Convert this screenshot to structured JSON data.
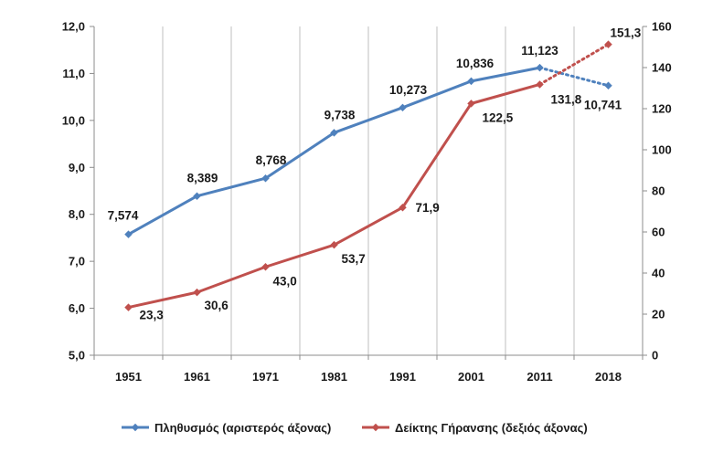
{
  "chart_data": {
    "type": "line",
    "title": "",
    "x": [
      "1951",
      "1961",
      "1971",
      "1981",
      "1991",
      "2001",
      "2011",
      "2018"
    ],
    "y_left": {
      "range": [
        5.0,
        12.0
      ],
      "step": 1.0,
      "tick_labels": [
        "5,0",
        "6,0",
        "7,0",
        "8,0",
        "9,0",
        "10,0",
        "11,0",
        "12,0"
      ]
    },
    "y_right": {
      "range": [
        0,
        160
      ],
      "step": 20,
      "tick_labels": [
        "0",
        "20",
        "40",
        "60",
        "80",
        "100",
        "120",
        "140",
        "160"
      ]
    },
    "grid": "vertical",
    "legend_position": "bottom",
    "series": [
      {
        "name": "Πληθυσμός (αριστερός άξονας)",
        "axis": "left",
        "color": "#4F81BD",
        "values": [
          7.574,
          8.389,
          8.768,
          9.738,
          10.273,
          10.836,
          11.123,
          10.741
        ],
        "labels": [
          "7,574",
          "8,389",
          "8,768",
          "9,738",
          "10,273",
          "10,836",
          "11,123",
          "10,741"
        ],
        "dashed_last_segment": true
      },
      {
        "name": "Δείκτης Γήρανσης (δεξιός άξονας)",
        "axis": "right",
        "color": "#C0504D",
        "values": [
          23.3,
          30.6,
          43.0,
          53.7,
          71.9,
          122.5,
          131.8,
          151.3
        ],
        "labels": [
          "23,3",
          "30,6",
          "43,0",
          "53,7",
          "71,9",
          "122,5",
          "131,8",
          "151,3"
        ],
        "dashed_last_segment": true
      }
    ]
  }
}
